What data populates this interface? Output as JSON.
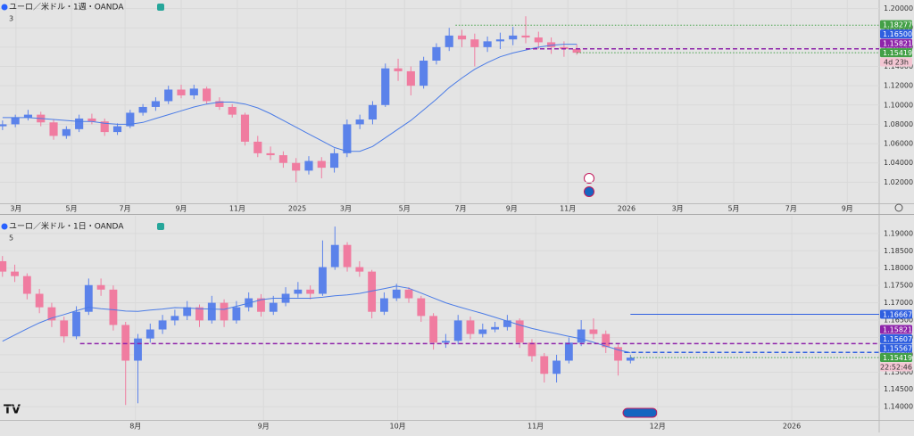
{
  "chart_data": [
    {
      "type": "candlestick",
      "title": "ユーロ／米ドル・1週・OANDA",
      "indicator": "3",
      "up_color": "#5b82ea",
      "down_color": "#f07ca0",
      "xlim": [
        -0.2,
        68.7
      ],
      "xticks": [
        {
          "value": 1.05,
          "label": "3月"
        },
        {
          "value": 5.4,
          "label": "5月"
        },
        {
          "value": 9.6,
          "label": "7月"
        },
        {
          "value": 14.0,
          "label": "9月"
        },
        {
          "value": 18.4,
          "label": "11月"
        },
        {
          "value": 23.1,
          "label": "2025"
        },
        {
          "value": 26.9,
          "label": "3月"
        },
        {
          "value": 31.5,
          "label": "5月"
        },
        {
          "value": 35.9,
          "label": "7月"
        },
        {
          "value": 39.9,
          "label": "9月"
        },
        {
          "value": 44.3,
          "label": "11月"
        },
        {
          "value": 48.9,
          "label": "2026"
        },
        {
          "value": 52.9,
          "label": "3月"
        },
        {
          "value": 57.3,
          "label": "5月"
        },
        {
          "value": 61.8,
          "label": "7月"
        },
        {
          "value": 66.2,
          "label": "9月"
        }
      ],
      "ylim": [
        1.0,
        1.207
      ],
      "yticks": [
        {
          "value": 1.02,
          "label": "1.02000"
        },
        {
          "value": 1.04,
          "label": "1.04000"
        },
        {
          "value": 1.06,
          "label": "1.06000"
        },
        {
          "value": 1.08,
          "label": "1.08000"
        },
        {
          "value": 1.1,
          "label": "1.10000"
        },
        {
          "value": 1.12,
          "label": "1.12000"
        },
        {
          "value": 1.14,
          "label": "1.14000"
        },
        {
          "value": 1.16,
          "label": "1.16000"
        },
        {
          "value": 1.18,
          "label": "1.18000"
        },
        {
          "value": 1.2,
          "label": "1.20000"
        }
      ],
      "grid": true,
      "ohlc": [
        [
          1.078,
          1.084,
          1.074,
          1.08
        ],
        [
          1.08,
          1.09,
          1.077,
          1.087
        ],
        [
          1.087,
          1.095,
          1.084,
          1.09
        ],
        [
          1.09,
          1.093,
          1.078,
          1.082
        ],
        [
          1.082,
          1.085,
          1.064,
          1.068
        ],
        [
          1.068,
          1.078,
          1.065,
          1.075
        ],
        [
          1.075,
          1.09,
          1.072,
          1.086
        ],
        [
          1.086,
          1.091,
          1.08,
          1.083
        ],
        [
          1.083,
          1.086,
          1.068,
          1.072
        ],
        [
          1.072,
          1.081,
          1.069,
          1.078
        ],
        [
          1.078,
          1.095,
          1.076,
          1.092
        ],
        [
          1.092,
          1.101,
          1.089,
          1.098
        ],
        [
          1.098,
          1.108,
          1.094,
          1.104
        ],
        [
          1.104,
          1.12,
          1.101,
          1.116
        ],
        [
          1.116,
          1.121,
          1.107,
          1.11
        ],
        [
          1.11,
          1.121,
          1.106,
          1.117
        ],
        [
          1.117,
          1.119,
          1.101,
          1.104
        ],
        [
          1.104,
          1.108,
          1.095,
          1.098
        ],
        [
          1.098,
          1.101,
          1.087,
          1.09
        ],
        [
          1.09,
          1.092,
          1.058,
          1.062
        ],
        [
          1.062,
          1.068,
          1.046,
          1.05
        ],
        [
          1.05,
          1.057,
          1.043,
          1.048
        ],
        [
          1.048,
          1.052,
          1.035,
          1.04
        ],
        [
          1.04,
          1.045,
          1.02,
          1.032
        ],
        [
          1.032,
          1.047,
          1.028,
          1.042
        ],
        [
          1.042,
          1.046,
          1.024,
          1.035
        ],
        [
          1.035,
          1.055,
          1.03,
          1.05
        ],
        [
          1.05,
          1.085,
          1.046,
          1.08
        ],
        [
          1.08,
          1.09,
          1.075,
          1.085
        ],
        [
          1.085,
          1.104,
          1.08,
          1.1
        ],
        [
          1.1,
          1.143,
          1.098,
          1.138
        ],
        [
          1.138,
          1.148,
          1.125,
          1.135
        ],
        [
          1.135,
          1.14,
          1.11,
          1.12
        ],
        [
          1.12,
          1.15,
          1.117,
          1.146
        ],
        [
          1.146,
          1.164,
          1.142,
          1.16
        ],
        [
          1.16,
          1.18,
          1.156,
          1.172
        ],
        [
          1.172,
          1.178,
          1.16,
          1.168
        ],
        [
          1.168,
          1.174,
          1.14,
          1.16
        ],
        [
          1.16,
          1.171,
          1.155,
          1.166
        ],
        [
          1.166,
          1.175,
          1.158,
          1.168
        ],
        [
          1.168,
          1.181,
          1.162,
          1.172
        ],
        [
          1.172,
          1.192,
          1.164,
          1.17
        ],
        [
          1.17,
          1.176,
          1.158,
          1.165
        ],
        [
          1.165,
          1.17,
          1.153,
          1.16
        ],
        [
          1.16,
          1.166,
          1.15,
          1.158
        ],
        [
          1.158,
          1.163,
          1.152,
          1.15419
        ]
      ],
      "ma": {
        "color": "#4a7be6",
        "values": [
          1.087,
          1.087,
          1.087,
          1.086,
          1.085,
          1.084,
          1.083,
          1.083,
          1.081,
          1.08,
          1.08,
          1.082,
          1.086,
          1.09,
          1.094,
          1.098,
          1.101,
          1.103,
          1.103,
          1.101,
          1.097,
          1.091,
          1.084,
          1.077,
          1.07,
          1.063,
          1.056,
          1.052,
          1.052,
          1.057,
          1.066,
          1.075,
          1.084,
          1.095,
          1.106,
          1.118,
          1.128,
          1.137,
          1.144,
          1.15,
          1.154,
          1.157,
          1.16,
          1.162,
          1.163,
          1.163
        ]
      },
      "levels": [
        {
          "value": 1.18277,
          "label": "1.18277",
          "color": "#43a047",
          "style": "dotted",
          "from": 35.5
        },
        {
          "value": 1.165,
          "label": "1.16500",
          "color": "#2f5fe0",
          "style": "none",
          "from": 45
        },
        {
          "value": 1.15821,
          "label": "1.15821",
          "color": "#8e24aa",
          "style": "dashed",
          "from": 41
        },
        {
          "value": 1.15419,
          "label": "1.15419",
          "color": "#43a047",
          "style": "dotted",
          "from": 45
        }
      ],
      "countdown": "4d 23h"
    },
    {
      "type": "candlestick",
      "title": "ユーロ／米ドル・1日・OANDA",
      "indicator": "5",
      "up_color": "#5b82ea",
      "down_color": "#f07ca0",
      "xlim": [
        -0.2,
        71.2
      ],
      "xticks": [
        {
          "value": 10.8,
          "label": "8月"
        },
        {
          "value": 21.2,
          "label": "9月"
        },
        {
          "value": 32.1,
          "label": "10月"
        },
        {
          "value": 43.3,
          "label": "11月"
        },
        {
          "value": 53.2,
          "label": "12月"
        },
        {
          "value": 64.1,
          "label": "2026"
        }
      ],
      "ylim": [
        1.1367,
        1.1946
      ],
      "yticks": [
        {
          "value": 1.14,
          "label": "1.14000"
        },
        {
          "value": 1.145,
          "label": "1.14500"
        },
        {
          "value": 1.15,
          "label": "1.15000"
        },
        {
          "value": 1.155,
          "label": "1.15500"
        },
        {
          "value": 1.16,
          "label": "1.16000"
        },
        {
          "value": 1.165,
          "label": "1.16500"
        },
        {
          "value": 1.17,
          "label": "1.17000"
        },
        {
          "value": 1.175,
          "label": "1.17500"
        },
        {
          "value": 1.18,
          "label": "1.18000"
        },
        {
          "value": 1.185,
          "label": "1.18500"
        },
        {
          "value": 1.19,
          "label": "1.19000"
        }
      ],
      "grid": true,
      "ohlc": [
        [
          1.182,
          1.1835,
          1.1775,
          1.179
        ],
        [
          1.179,
          1.181,
          1.176,
          1.1777
        ],
        [
          1.1777,
          1.1785,
          1.171,
          1.1726
        ],
        [
          1.1726,
          1.174,
          1.167,
          1.1687
        ],
        [
          1.1687,
          1.17,
          1.163,
          1.1649
        ],
        [
          1.1649,
          1.166,
          1.1585,
          1.1603
        ],
        [
          1.1603,
          1.169,
          1.1595,
          1.1674
        ],
        [
          1.1674,
          1.177,
          1.1665,
          1.1751
        ],
        [
          1.1751,
          1.177,
          1.172,
          1.1738
        ],
        [
          1.1738,
          1.175,
          1.162,
          1.1636
        ],
        [
          1.1636,
          1.1645,
          1.1405,
          1.1533
        ],
        [
          1.1533,
          1.161,
          1.141,
          1.1597
        ],
        [
          1.1597,
          1.164,
          1.1585,
          1.1623
        ],
        [
          1.1623,
          1.1665,
          1.161,
          1.1649
        ],
        [
          1.1649,
          1.168,
          1.1635,
          1.1662
        ],
        [
          1.1662,
          1.1705,
          1.165,
          1.1687
        ],
        [
          1.1687,
          1.1695,
          1.163,
          1.1649
        ],
        [
          1.1649,
          1.172,
          1.164,
          1.17
        ],
        [
          1.17,
          1.171,
          1.163,
          1.1649
        ],
        [
          1.1649,
          1.1705,
          1.164,
          1.1687
        ],
        [
          1.1687,
          1.173,
          1.1675,
          1.1713
        ],
        [
          1.1713,
          1.1725,
          1.166,
          1.1674
        ],
        [
          1.1674,
          1.172,
          1.1665,
          1.17
        ],
        [
          1.17,
          1.1745,
          1.169,
          1.1726
        ],
        [
          1.1726,
          1.176,
          1.1715,
          1.1738
        ],
        [
          1.1738,
          1.175,
          1.171,
          1.1726
        ],
        [
          1.1726,
          1.188,
          1.172,
          1.1803
        ],
        [
          1.1803,
          1.192,
          1.1795,
          1.1867
        ],
        [
          1.1867,
          1.1875,
          1.179,
          1.1803
        ],
        [
          1.1803,
          1.182,
          1.1775,
          1.179
        ],
        [
          1.179,
          1.1795,
          1.1655,
          1.1674
        ],
        [
          1.1674,
          1.173,
          1.1665,
          1.1713
        ],
        [
          1.1713,
          1.1755,
          1.1705,
          1.1738
        ],
        [
          1.1738,
          1.1745,
          1.17,
          1.1713
        ],
        [
          1.1713,
          1.172,
          1.1645,
          1.1662
        ],
        [
          1.1662,
          1.167,
          1.1565,
          1.1585
        ],
        [
          1.1585,
          1.161,
          1.157,
          1.159
        ],
        [
          1.159,
          1.1665,
          1.158,
          1.1649
        ],
        [
          1.1649,
          1.166,
          1.1595,
          1.161
        ],
        [
          1.161,
          1.164,
          1.16,
          1.1623
        ],
        [
          1.1623,
          1.1645,
          1.1615,
          1.163
        ],
        [
          1.163,
          1.1665,
          1.162,
          1.1649
        ],
        [
          1.1649,
          1.1655,
          1.157,
          1.1585
        ],
        [
          1.1585,
          1.1595,
          1.153,
          1.1546
        ],
        [
          1.1546,
          1.1555,
          1.147,
          1.1495
        ],
        [
          1.1495,
          1.155,
          1.147,
          1.1533
        ],
        [
          1.1533,
          1.16,
          1.1525,
          1.1585
        ],
        [
          1.1585,
          1.165,
          1.1575,
          1.1623
        ],
        [
          1.1623,
          1.1655,
          1.1595,
          1.161
        ],
        [
          1.161,
          1.162,
          1.1555,
          1.1572
        ],
        [
          1.1572,
          1.158,
          1.149,
          1.1533
        ],
        [
          1.1533,
          1.155,
          1.1525,
          1.15419
        ]
      ],
      "ma": {
        "color": "#4a7be6",
        "values": [
          1.1589,
          1.1607,
          1.1625,
          1.1642,
          1.1656,
          1.1666,
          1.1677,
          1.1687,
          1.1683,
          1.168,
          1.1676,
          1.1675,
          1.1679,
          1.1682,
          1.1686,
          1.1685,
          1.1683,
          1.1682,
          1.1681,
          1.169,
          1.1699,
          1.1709,
          1.1713,
          1.1713,
          1.1713,
          1.1713,
          1.1716,
          1.172,
          1.1723,
          1.1727,
          1.1734,
          1.1741,
          1.1748,
          1.1742,
          1.1728,
          1.1714,
          1.17,
          1.1689,
          1.1679,
          1.1669,
          1.1658,
          1.1647,
          1.1636,
          1.1626,
          1.1618,
          1.1611,
          1.1603,
          1.1596,
          1.1586,
          1.1575,
          1.1564,
          1.1556
        ]
      },
      "levels": [
        {
          "value": 1.16667,
          "label": "1.16667",
          "color": "#2f5fe0",
          "style": "solid",
          "from": 51
        },
        {
          "value": 1.15821,
          "label": "1.15821",
          "color": "#8e24aa",
          "style": "dashed",
          "from": 6.3
        },
        {
          "value": 1.15607,
          "label": "1.15607",
          "color": "#2f5fe0",
          "style": "none",
          "from": 51
        },
        {
          "value": 1.15567,
          "label": "1.15567",
          "color": "#2f5fe0",
          "style": "dashed",
          "from": 50.5
        },
        {
          "value": 1.15419,
          "label": "1.15419",
          "color": "#43a047",
          "style": "dotted",
          "from": 51
        }
      ],
      "countdown": "22:52:46"
    }
  ]
}
